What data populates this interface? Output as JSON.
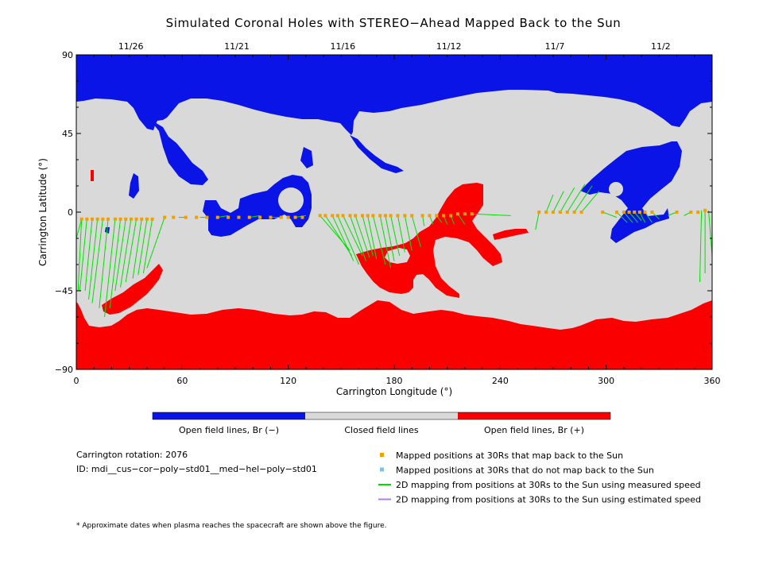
{
  "chart_data": {
    "type": "map",
    "title": "Simulated Coronal Holes with STEREO−Ahead Mapped Back to the Sun",
    "xlabel": "Carrington Longitude (°)",
    "ylabel": "Carrington Latitude (°)",
    "xlim": [
      0,
      360
    ],
    "ylim": [
      -90,
      90
    ],
    "x_ticks": [
      0,
      60,
      120,
      180,
      240,
      300,
      360
    ],
    "y_ticks": [
      90,
      45,
      0,
      -45,
      -90
    ],
    "top_axis_dates": [
      {
        "label": "11/26",
        "longitude": 30
      },
      {
        "label": "11/21",
        "longitude": 90
      },
      {
        "label": "11/16",
        "longitude": 150
      },
      {
        "label": "11/12",
        "longitude": 210
      },
      {
        "label": "11/7",
        "longitude": 270
      },
      {
        "label": "11/2",
        "longitude": 330
      }
    ],
    "colorbar": [
      {
        "label": "Open field lines, Br (−)",
        "color": "#0a14e6"
      },
      {
        "label": "Closed field lines",
        "color": "#d9d9d9"
      },
      {
        "label": "Open field lines, Br (+)",
        "color": "#fa0000"
      }
    ],
    "colors": {
      "negative_open": "#0a14e6",
      "closed": "#d9d9d9",
      "positive_open": "#fa0000",
      "mapped_point": "#f0a000",
      "unmapped_point": "#7fc0f0",
      "measured_line": "#00e000",
      "estimated_line": "#b080e0"
    },
    "legend": [
      {
        "label": "Mapped positions at 30Rs that map back to the Sun",
        "marker": "square",
        "color": "#f0a000"
      },
      {
        "label": "Mapped positions at 30Rs that do not map back to the Sun",
        "marker": "square",
        "color": "#7fc0f0"
      },
      {
        "label": "2D mapping from positions at 30Rs to the Sun using measured speed",
        "marker": "line",
        "color": "#00e000"
      },
      {
        "label": "2D mapping from positions at 30Rs to the Sun using estimated speed",
        "marker": "line",
        "color": "#b080e0"
      }
    ],
    "info": {
      "rotation": "Carrington rotation: 2076",
      "id": "ID: mdi__cus−cor−poly−std01__med−hel−poly−std01"
    },
    "footnote": "* Approximate dates when plasma reaches the spacecraft are shown above the figure.",
    "mapped_positions_30Rs": [
      [
        3,
        -4
      ],
      [
        6,
        -4
      ],
      [
        9,
        -4
      ],
      [
        12,
        -4
      ],
      [
        15,
        -4
      ],
      [
        18,
        -4
      ],
      [
        22,
        -4
      ],
      [
        25,
        -4
      ],
      [
        28,
        -4
      ],
      [
        31,
        -4
      ],
      [
        34,
        -4
      ],
      [
        37,
        -4
      ],
      [
        40,
        -4
      ],
      [
        43,
        -4
      ],
      [
        50,
        -3
      ],
      [
        55,
        -3
      ],
      [
        62,
        -3
      ],
      [
        68,
        -3
      ],
      [
        74,
        -3
      ],
      [
        80,
        -3
      ],
      [
        86,
        -3
      ],
      [
        92,
        -3
      ],
      [
        98,
        -3
      ],
      [
        104,
        -3
      ],
      [
        110,
        -3
      ],
      [
        116,
        -3
      ],
      [
        120,
        -3
      ],
      [
        124,
        -3
      ],
      [
        128,
        -3
      ],
      [
        138,
        -2
      ],
      [
        141,
        -2
      ],
      [
        145,
        -2
      ],
      [
        148,
        -2
      ],
      [
        151,
        -2
      ],
      [
        155,
        -2
      ],
      [
        158,
        -2
      ],
      [
        162,
        -2
      ],
      [
        165,
        -2
      ],
      [
        168,
        -2
      ],
      [
        172,
        -2
      ],
      [
        175,
        -2
      ],
      [
        178,
        -2
      ],
      [
        182,
        -2
      ],
      [
        186,
        -2
      ],
      [
        190,
        -2
      ],
      [
        196,
        -2
      ],
      [
        200,
        -2
      ],
      [
        204,
        -2
      ],
      [
        208,
        -2
      ],
      [
        212,
        -2
      ],
      [
        216,
        -1
      ],
      [
        220,
        -1
      ],
      [
        224,
        -1
      ],
      [
        262,
        0
      ],
      [
        266,
        0
      ],
      [
        270,
        0
      ],
      [
        274,
        0
      ],
      [
        278,
        0
      ],
      [
        282,
        0
      ],
      [
        286,
        0
      ],
      [
        298,
        0
      ],
      [
        306,
        0
      ],
      [
        310,
        0
      ],
      [
        313,
        0
      ],
      [
        316,
        0
      ],
      [
        319,
        0
      ],
      [
        322,
        0
      ],
      [
        326,
        0
      ],
      [
        340,
        0
      ],
      [
        348,
        0
      ],
      [
        352,
        0
      ],
      [
        356,
        1
      ]
    ],
    "mapping_lines_measured": [
      [
        [
          3,
          -4
        ],
        [
          0,
          -15
        ]
      ],
      [
        [
          3,
          -4
        ],
        [
          1,
          -45
        ]
      ],
      [
        [
          6,
          -4
        ],
        [
          2,
          -45
        ]
      ],
      [
        [
          9,
          -4
        ],
        [
          5,
          -45
        ]
      ],
      [
        [
          12,
          -4
        ],
        [
          7,
          -50
        ]
      ],
      [
        [
          15,
          -4
        ],
        [
          9,
          -52
        ]
      ],
      [
        [
          18,
          -4
        ],
        [
          13,
          -55
        ]
      ],
      [
        [
          22,
          -4
        ],
        [
          16,
          -60
        ]
      ],
      [
        [
          25,
          -4
        ],
        [
          19,
          -55
        ]
      ],
      [
        [
          28,
          -4
        ],
        [
          22,
          -45
        ]
      ],
      [
        [
          31,
          -4
        ],
        [
          25,
          -43
        ]
      ],
      [
        [
          34,
          -4
        ],
        [
          28,
          -40
        ]
      ],
      [
        [
          37,
          -4
        ],
        [
          32,
          -38
        ]
      ],
      [
        [
          40,
          -4
        ],
        [
          35,
          -36
        ]
      ],
      [
        [
          43,
          -4
        ],
        [
          38,
          -35
        ]
      ],
      [
        [
          50,
          -3
        ],
        [
          40,
          -32
        ]
      ],
      [
        [
          62,
          -3
        ],
        [
          58,
          -3
        ]
      ],
      [
        [
          74,
          -3
        ],
        [
          70,
          -3
        ]
      ],
      [
        [
          80,
          -3
        ],
        [
          86,
          -2
        ]
      ],
      [
        [
          98,
          -3
        ],
        [
          104,
          -2
        ]
      ],
      [
        [
          110,
          -3
        ],
        [
          117,
          -3
        ]
      ],
      [
        [
          124,
          -3
        ],
        [
          130,
          -2
        ]
      ],
      [
        [
          138,
          -2
        ],
        [
          155,
          -22
        ]
      ],
      [
        [
          141,
          -2
        ],
        [
          156,
          -25
        ]
      ],
      [
        [
          145,
          -2
        ],
        [
          157,
          -28
        ]
      ],
      [
        [
          148,
          -2
        ],
        [
          160,
          -30
        ]
      ],
      [
        [
          151,
          -2
        ],
        [
          162,
          -25
        ]
      ],
      [
        [
          155,
          -2
        ],
        [
          164,
          -28
        ]
      ],
      [
        [
          158,
          -2
        ],
        [
          166,
          -26
        ]
      ],
      [
        [
          162,
          -2
        ],
        [
          168,
          -25
        ]
      ],
      [
        [
          165,
          -2
        ],
        [
          170,
          -27
        ]
      ],
      [
        [
          168,
          -2
        ],
        [
          175,
          -30
        ]
      ],
      [
        [
          172,
          -2
        ],
        [
          178,
          -32
        ]
      ],
      [
        [
          175,
          -2
        ],
        [
          180,
          -28
        ]
      ],
      [
        [
          178,
          -2
        ],
        [
          183,
          -25
        ]
      ],
      [
        [
          182,
          -2
        ],
        [
          186,
          -23
        ]
      ],
      [
        [
          186,
          -2
        ],
        [
          190,
          -22
        ]
      ],
      [
        [
          190,
          -2
        ],
        [
          195,
          -20
        ]
      ],
      [
        [
          196,
          -2
        ],
        [
          197,
          -8
        ]
      ],
      [
        [
          200,
          -2
        ],
        [
          202,
          -7
        ]
      ],
      [
        [
          204,
          -2
        ],
        [
          207,
          -6
        ]
      ],
      [
        [
          208,
          -2
        ],
        [
          210,
          -7
        ]
      ],
      [
        [
          212,
          -2
        ],
        [
          214,
          -7
        ]
      ],
      [
        [
          216,
          -1
        ],
        [
          220,
          -7
        ]
      ],
      [
        [
          224,
          -1
        ],
        [
          246,
          -2
        ]
      ],
      [
        [
          262,
          0
        ],
        [
          260,
          -10
        ]
      ],
      [
        [
          266,
          0
        ],
        [
          270,
          10
        ]
      ],
      [
        [
          270,
          0
        ],
        [
          276,
          12
        ]
      ],
      [
        [
          274,
          0
        ],
        [
          282,
          14
        ]
      ],
      [
        [
          278,
          0
        ],
        [
          288,
          16
        ]
      ],
      [
        [
          282,
          0
        ],
        [
          292,
          15
        ]
      ],
      [
        [
          286,
          0
        ],
        [
          296,
          12
        ]
      ],
      [
        [
          298,
          0
        ],
        [
          306,
          -3
        ]
      ],
      [
        [
          306,
          0
        ],
        [
          312,
          -6
        ]
      ],
      [
        [
          310,
          0
        ],
        [
          315,
          -6
        ]
      ],
      [
        [
          313,
          0
        ],
        [
          318,
          -6
        ]
      ],
      [
        [
          316,
          0
        ],
        [
          320,
          -5
        ]
      ],
      [
        [
          319,
          0
        ],
        [
          322,
          -6
        ]
      ],
      [
        [
          322,
          0
        ],
        [
          326,
          -6
        ]
      ],
      [
        [
          326,
          0
        ],
        [
          330,
          -4
        ]
      ],
      [
        [
          340,
          0
        ],
        [
          335,
          -2
        ]
      ],
      [
        [
          348,
          0
        ],
        [
          344,
          -2
        ]
      ],
      [
        [
          356,
          1
        ],
        [
          356,
          -35
        ]
      ],
      [
        [
          358,
          1
        ],
        [
          360,
          -25
        ]
      ],
      [
        [
          354,
          1
        ],
        [
          353,
          -40
        ]
      ]
    ]
  }
}
